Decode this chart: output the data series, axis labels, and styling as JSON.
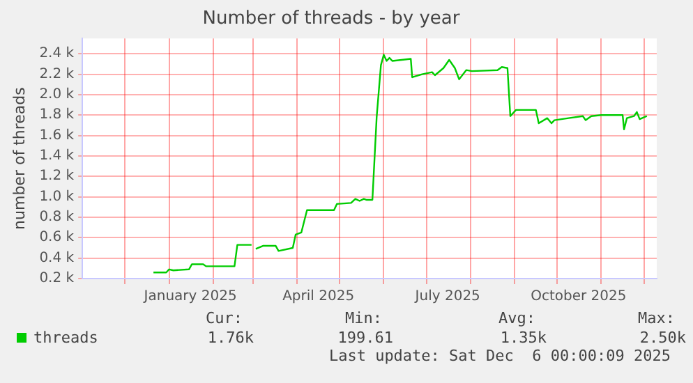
{
  "chart_data": {
    "type": "line",
    "title": "Number of threads - by year",
    "ylabel": "number of threads",
    "x": [
      "2024-12-21",
      "2024-12-30",
      "2025-01-01",
      "2025-01-04",
      "2025-01-15",
      "2025-01-17",
      "2025-01-25",
      "2025-01-27",
      "2025-02-01",
      "2025-02-16",
      "2025-02-18",
      "2025-02-28",
      "2025-03-01",
      "2025-03-03",
      "2025-03-08",
      "2025-03-17",
      "2025-03-19",
      "2025-03-29",
      "2025-03-31",
      "2025-04-04",
      "2025-04-08",
      "2025-04-27",
      "2025-04-29",
      "2025-05-09",
      "2025-05-12",
      "2025-05-15",
      "2025-05-18",
      "2025-05-20",
      "2025-05-24",
      "2025-05-27",
      "2025-05-30",
      "2025-06-01",
      "2025-06-03",
      "2025-06-05",
      "2025-06-07",
      "2025-06-20",
      "2025-06-21",
      "2025-06-28",
      "2025-07-05",
      "2025-07-07",
      "2025-07-13",
      "2025-07-17",
      "2025-07-21",
      "2025-07-24",
      "2025-07-29",
      "2025-08-02",
      "2025-08-20",
      "2025-08-23",
      "2025-08-27",
      "2025-08-29",
      "2025-09-02",
      "2025-09-09",
      "2025-09-16",
      "2025-09-18",
      "2025-09-24",
      "2025-09-27",
      "2025-09-29",
      "2025-10-09",
      "2025-10-19",
      "2025-10-21",
      "2025-10-25",
      "2025-11-01",
      "2025-11-16",
      "2025-11-17",
      "2025-11-19",
      "2025-11-24",
      "2025-11-26",
      "2025-11-28",
      "2025-12-03"
    ],
    "series": [
      {
        "name": "threads",
        "color": "#00cc00",
        "values": [
          0.26,
          0.26,
          0.29,
          0.28,
          0.29,
          0.34,
          0.34,
          0.32,
          0.32,
          0.32,
          0.53,
          0.53,
          null,
          0.49,
          0.52,
          0.52,
          0.47,
          0.5,
          0.63,
          0.65,
          0.87,
          0.87,
          0.93,
          0.94,
          0.98,
          0.96,
          0.98,
          0.97,
          0.97,
          1.78,
          2.29,
          2.39,
          2.33,
          2.36,
          2.33,
          2.35,
          2.17,
          2.2,
          2.22,
          2.19,
          2.26,
          2.34,
          2.26,
          2.15,
          2.24,
          2.23,
          2.24,
          2.27,
          2.26,
          1.79,
          1.85,
          1.85,
          1.85,
          1.72,
          1.77,
          1.72,
          1.75,
          1.77,
          1.79,
          1.75,
          1.79,
          1.8,
          1.8,
          1.66,
          1.77,
          1.79,
          1.83,
          1.76,
          1.79
        ]
      }
    ],
    "xlim": [
      "2024-11-01",
      "2025-12-10"
    ],
    "xticks": [
      {
        "value": "2024-12-01",
        "label": null
      },
      {
        "value": "2025-01-01",
        "label": null
      },
      {
        "value": "2025-01-16",
        "label": "January 2025"
      },
      {
        "value": "2025-02-01",
        "label": null
      },
      {
        "value": "2025-03-01",
        "label": null
      },
      {
        "value": "2025-04-01",
        "label": null
      },
      {
        "value": "2025-04-16",
        "label": "April 2025"
      },
      {
        "value": "2025-05-01",
        "label": null
      },
      {
        "value": "2025-06-01",
        "label": null
      },
      {
        "value": "2025-07-01",
        "label": null
      },
      {
        "value": "2025-07-16",
        "label": "July 2025"
      },
      {
        "value": "2025-08-01",
        "label": null
      },
      {
        "value": "2025-09-01",
        "label": null
      },
      {
        "value": "2025-10-01",
        "label": null
      },
      {
        "value": "2025-10-16",
        "label": "October 2025"
      },
      {
        "value": "2025-11-01",
        "label": null
      },
      {
        "value": "2025-12-01",
        "label": null
      }
    ],
    "ylim": [
      0.2,
      2.55
    ],
    "yticks": [
      {
        "value": 0.2,
        "label": "0.2 k"
      },
      {
        "value": 0.4,
        "label": "0.4 k"
      },
      {
        "value": 0.6,
        "label": "0.6 k"
      },
      {
        "value": 0.8,
        "label": "0.8 k"
      },
      {
        "value": 1.0,
        "label": "1.0 k"
      },
      {
        "value": 1.2,
        "label": "1.2 k"
      },
      {
        "value": 1.4,
        "label": "1.4 k"
      },
      {
        "value": 1.6,
        "label": "1.6 k"
      },
      {
        "value": 1.8,
        "label": "1.8 k"
      },
      {
        "value": 2.0,
        "label": "2.0 k"
      },
      {
        "value": 2.2,
        "label": "2.2 k"
      },
      {
        "value": 2.4,
        "label": "2.4 k"
      }
    ],
    "grid": true,
    "legend": "bottom left",
    "marker": "none",
    "line_style": "solid",
    "annotations": [
      "Cur:",
      "1.76k",
      "Min:",
      "199.61",
      "Avg:",
      "1.35k",
      "Max:",
      "2.50k",
      "Last update: Sat Dec  6 00:00:09 2025"
    ]
  }
}
